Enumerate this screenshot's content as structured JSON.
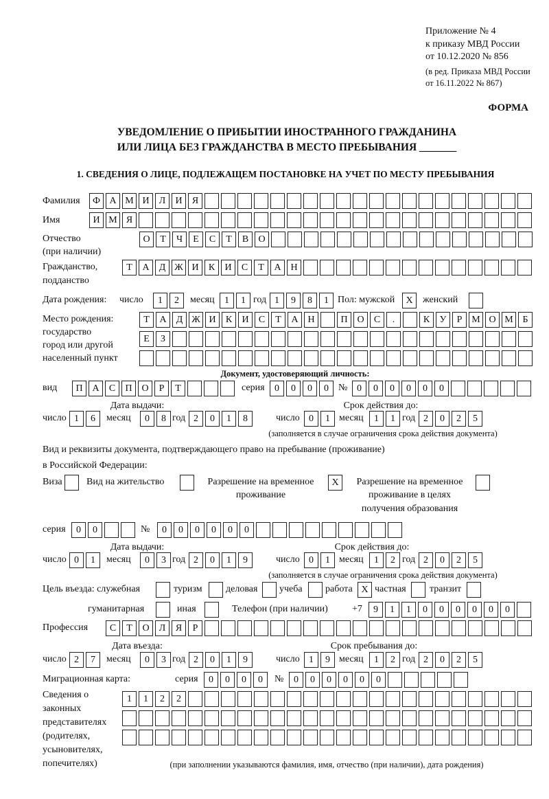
{
  "header": {
    "appendix": "Приложение № 4",
    "order": "к приказу МВД России",
    "order_date": "от 10.12.2020 № 856",
    "edition1": "(в ред. Приказа МВД России",
    "edition2": "от 16.11.2022 № 867)",
    "form": "ФОРМА",
    "title1": "УВЕДОМЛЕНИЕ О ПРИБЫТИИ ИНОСТРАННОГО ГРАЖДАНИНА",
    "title2": "ИЛИ ЛИЦА БЕЗ ГРАЖДАНСТВА В МЕСТО ПРЕБЫВАНИЯ _______",
    "section1": "1. СВЕДЕНИЯ О ЛИЦЕ, ПОДЛЕЖАЩЕМ ПОСТАНОВКЕ НА УЧЕТ ПО МЕСТУ ПРЕБЫВАНИЯ"
  },
  "labels": {
    "surname": "Фамилия",
    "name": "Имя",
    "patronymic1": "Отчество",
    "patronymic2": "(при наличии)",
    "citizenship1": "Гражданство,",
    "citizenship2": "подданство",
    "birth_date": "Дата рождения:",
    "day": "число",
    "month": "месяц",
    "year": "год",
    "sex": "Пол: мужской",
    "female": "женский",
    "birth_place1": "Место рождения:",
    "birth_place2": "государство",
    "birth_place3": "город или другой",
    "birth_place4": "населенный пункт",
    "id_doc": "Документ, удостоверяющий личность:",
    "kind": "вид",
    "series": "серия",
    "number": "№",
    "issue_date": "Дата выдачи:",
    "valid_until": "Срок действия до:",
    "valid_note": "(заполняется в случае ограничения срока действия документа)",
    "permit1": "Вид и реквизиты документа, подтверждающего право на пребывание (проживание)",
    "permit2": "в Российской Федерации:",
    "visa": "Виза",
    "residence": "Вид на жительство",
    "temp1": "Разрешение на временное",
    "temp2": "проживание",
    "edu1": "Разрешение на временное",
    "edu2": "проживание в целях",
    "edu3": "получения образования",
    "purpose": "Цель въезда: служебная",
    "tourism": "туризм",
    "business": "деловая",
    "study": "учеба",
    "work": "работа",
    "private": "частная",
    "transit": "транзит",
    "humanitarian": "гуманитарная",
    "other": "иная",
    "phone": "Телефон (при наличии)",
    "phone_prefix": "+7",
    "profession": "Профессия",
    "entry_date": "Дата въезда:",
    "stay_until": "Срок пребывания до:",
    "migration_card": "Миграционная карта:",
    "reps1": "Сведения о",
    "reps2": "законных",
    "reps3": "представителях",
    "reps4": "(родителях,",
    "reps5": "усыновителях,",
    "reps6": "попечителях)",
    "reps_note": "(при заполнении указываются фамилия, имя, отчество (при наличии), дата рождения)"
  },
  "person": {
    "surname": "ФАМИЛИЯ",
    "name": "ИМЯ",
    "patronymic": "ОТЧЕСТВО",
    "citizenship": "ТАДЖИКИСТАН",
    "birth_day": "12",
    "birth_month": "11",
    "birth_year": "1981",
    "male": "X",
    "female": "",
    "birth_place_1": "ТАДЖИКИСТАН ПОС. КУРМОМБ",
    "birth_place_2": "ЕЗ",
    "birth_place_3": ""
  },
  "id_document": {
    "kind": "ПАСПОРТ",
    "series": "0000",
    "number": "000000",
    "issue_day": "16",
    "issue_month": "08",
    "issue_year": "2018",
    "valid_day": "01",
    "valid_month": "11",
    "valid_year": "2025"
  },
  "permit": {
    "visa": "",
    "residence": "",
    "temporary": "X",
    "education": "",
    "series": "00",
    "number": "000000",
    "issue_day": "01",
    "issue_month": "03",
    "issue_year": "2019",
    "valid_day": "01",
    "valid_month": "12",
    "valid_year": "2025"
  },
  "purpose": {
    "official": "",
    "tourism": "",
    "business": "",
    "study": "",
    "work": "X",
    "private": "",
    "transit": "",
    "humanitarian": "",
    "other": ""
  },
  "phone": "911000000",
  "profession": "СТОЛЯР",
  "entry": {
    "day": "27",
    "month": "03",
    "year": "2019",
    "stay_day": "19",
    "stay_month": "12",
    "stay_year": "2025"
  },
  "migration_card": {
    "series": "0000",
    "number": "000000"
  },
  "representatives": [
    "1122",
    "",
    ""
  ]
}
